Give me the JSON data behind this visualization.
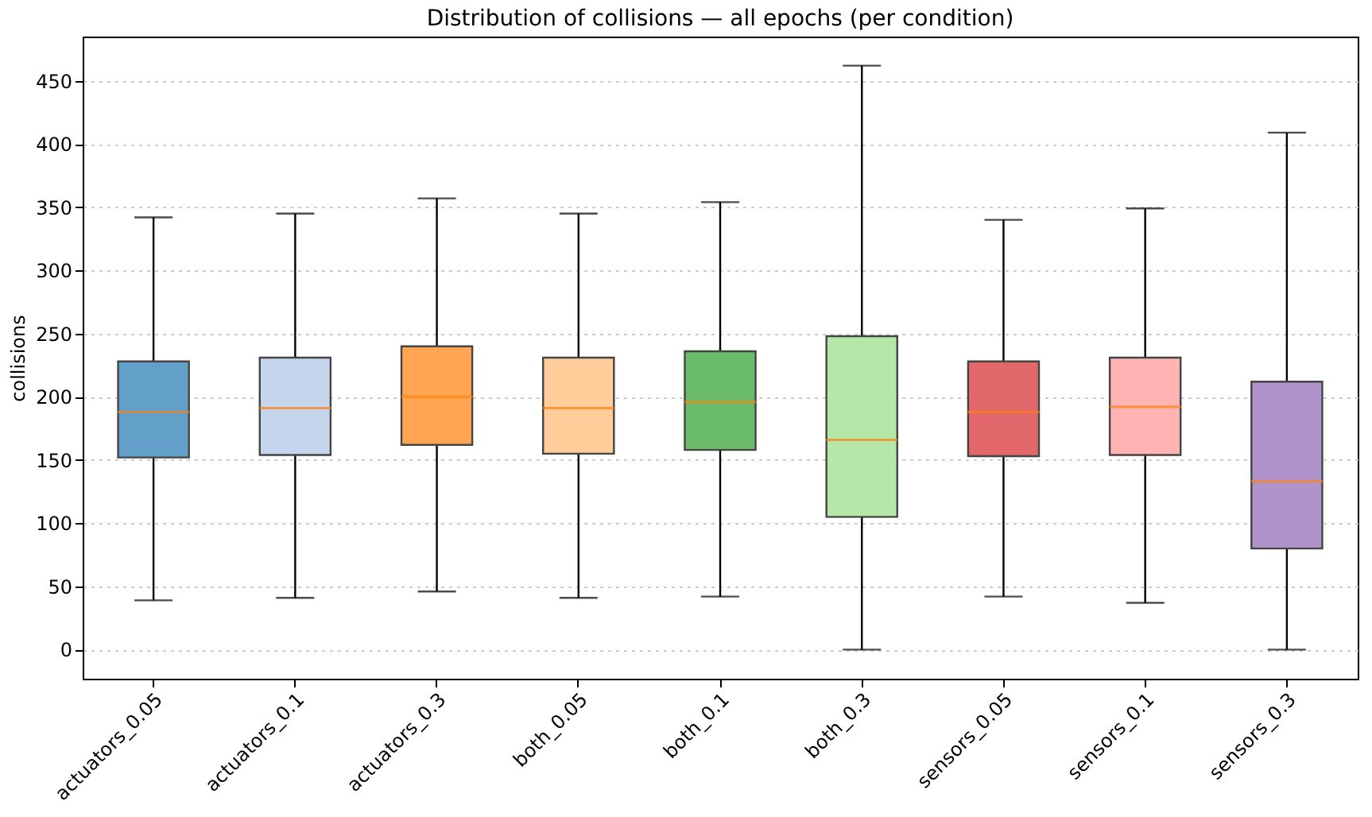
{
  "chart_data": {
    "type": "box",
    "title": "Distribution of collisions — all epochs (per condition)",
    "ylabel": "collisions",
    "categories": [
      "actuators_0.05",
      "actuators_0.1",
      "actuators_0.3",
      "both_0.05",
      "both_0.1",
      "both_0.3",
      "sensors_0.05",
      "sensors_0.1",
      "sensors_0.3"
    ],
    "colors": [
      "#62a0ca",
      "#c5d6ec",
      "#ffa552",
      "#ffcc9a",
      "#6abb6a",
      "#b5e7a9",
      "#e2686b",
      "#ffb3b3",
      "#b193cc"
    ],
    "boxes": [
      {
        "low": 39,
        "q1": 152,
        "median": 188,
        "q3": 228,
        "high": 342
      },
      {
        "low": 41,
        "q1": 154,
        "median": 191,
        "q3": 231,
        "high": 345
      },
      {
        "low": 46,
        "q1": 162,
        "median": 200,
        "q3": 240,
        "high": 357
      },
      {
        "low": 41,
        "q1": 155,
        "median": 191,
        "q3": 231,
        "high": 345
      },
      {
        "low": 42,
        "q1": 158,
        "median": 196,
        "q3": 236,
        "high": 354
      },
      {
        "low": 0,
        "q1": 105,
        "median": 166,
        "q3": 248,
        "high": 462
      },
      {
        "low": 42,
        "q1": 153,
        "median": 188,
        "q3": 228,
        "high": 340
      },
      {
        "low": 37,
        "q1": 154,
        "median": 192,
        "q3": 231,
        "high": 349
      },
      {
        "low": 0,
        "q1": 80,
        "median": 133,
        "q3": 212,
        "high": 409
      }
    ],
    "ylim": [
      -23,
      485
    ],
    "yticks": [
      0,
      50,
      100,
      150,
      200,
      250,
      300,
      350,
      400,
      450
    ],
    "grid": "y"
  }
}
